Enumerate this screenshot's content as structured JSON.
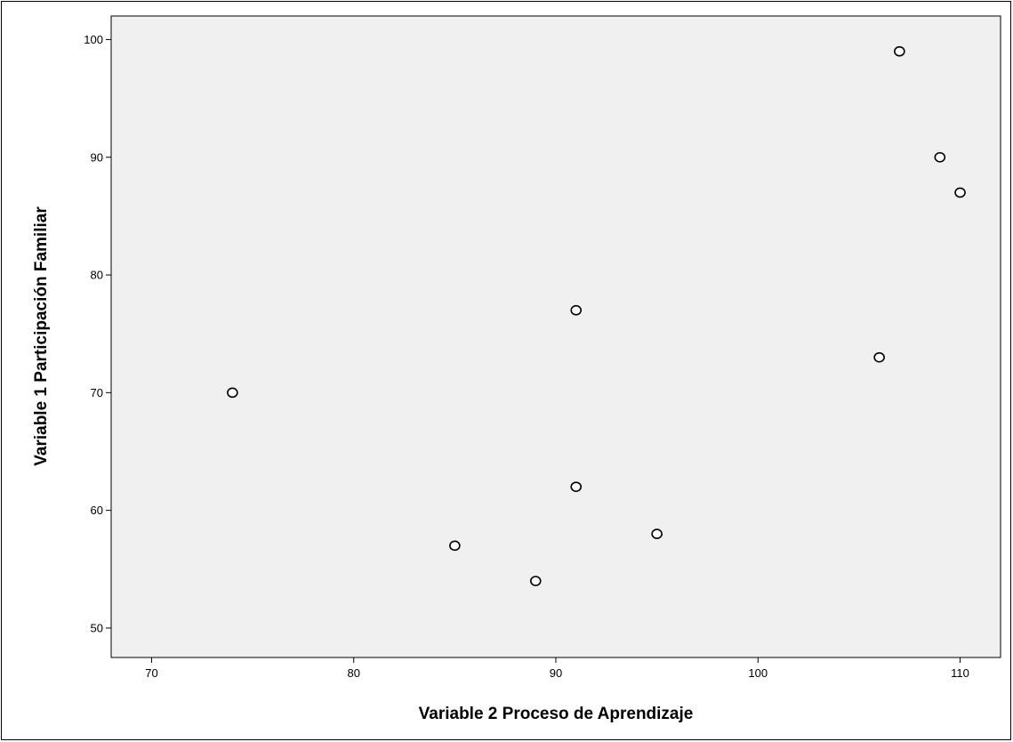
{
  "chart_data": {
    "type": "scatter",
    "title": "",
    "xlabel": "Variable 2 Proceso de Aprendizaje",
    "ylabel": "Variable 1 Participación Familiar",
    "xlim": [
      68,
      112
    ],
    "ylim": [
      47.5,
      102
    ],
    "xticks": [
      70,
      80,
      90,
      100,
      110
    ],
    "yticks": [
      50,
      60,
      70,
      80,
      90,
      100
    ],
    "grid": false,
    "legend": "none",
    "series": [
      {
        "x": [
          74,
          85,
          89,
          91,
          91,
          95,
          106,
          107,
          109,
          110
        ],
        "y": [
          70,
          57,
          54,
          77,
          62,
          58,
          73,
          99,
          90,
          87
        ]
      }
    ],
    "colors": {
      "plot_background": "#f0f0f0",
      "marker_fill": "#ffffff",
      "marker_stroke": "#000000"
    }
  }
}
